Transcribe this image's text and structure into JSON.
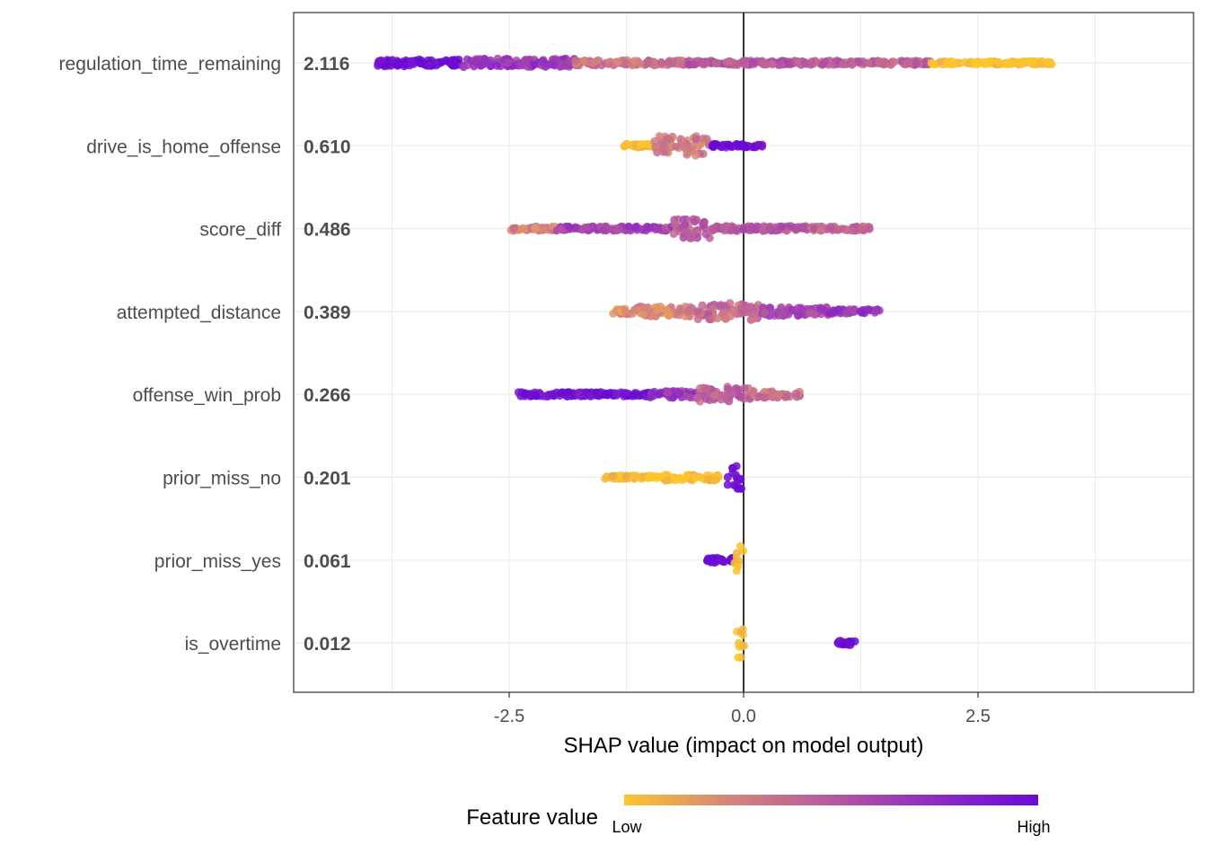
{
  "chart_data": {
    "type": "scatter",
    "subtype": "shap-beeswarm",
    "xlabel": "SHAP value (impact on model output)",
    "xlim": [
      -4.8,
      4.8
    ],
    "x_ticks": [
      -2.5,
      0.0,
      2.5
    ],
    "x_tick_labels": [
      "-2.5",
      "0.0",
      "2.5"
    ],
    "grid": true,
    "zero_line": 0,
    "legend": {
      "title": "Feature value",
      "low_label": "Low",
      "high_label": "High",
      "placement": "bottom",
      "gradient": [
        "#fcc52c",
        "#d6857a",
        "#b7589f",
        "#8e2bc2",
        "#6a0bd4"
      ]
    },
    "features": [
      {
        "name": "regulation_time_remaining",
        "mean_abs": "2.116",
        "segments": [
          {
            "from": -3.9,
            "to": -3.0,
            "color": 1.0,
            "spread": 0.08
          },
          {
            "from": -3.0,
            "to": -1.8,
            "color": 0.7,
            "spread": 0.1
          },
          {
            "from": -1.8,
            "to": -0.6,
            "color": 0.35,
            "spread": 0.06
          },
          {
            "from": -0.6,
            "to": 0.6,
            "color": 0.5,
            "spread": 0.05
          },
          {
            "from": 0.6,
            "to": 2.0,
            "color": 0.45,
            "spread": 0.05
          },
          {
            "from": 2.0,
            "to": 3.3,
            "color": 0.0,
            "spread": 0.04
          }
        ]
      },
      {
        "name": "drive_is_home_offense",
        "mean_abs": "0.610",
        "segments": [
          {
            "from": -1.3,
            "to": -0.95,
            "color": 0.05,
            "spread": 0.04
          },
          {
            "from": -0.95,
            "to": -0.35,
            "color": 0.3,
            "spread": 0.24
          },
          {
            "from": -0.35,
            "to": 0.2,
            "color": 0.95,
            "spread": 0.04
          }
        ]
      },
      {
        "name": "score_diff",
        "mean_abs": "0.486",
        "segments": [
          {
            "from": -2.5,
            "to": -2.0,
            "color": 0.3,
            "spread": 0.05
          },
          {
            "from": -2.0,
            "to": -0.75,
            "color": 0.62,
            "spread": 0.05
          },
          {
            "from": -0.75,
            "to": -0.35,
            "color": 0.48,
            "spread": 0.24
          },
          {
            "from": -0.35,
            "to": 0.7,
            "color": 0.5,
            "spread": 0.06
          },
          {
            "from": 0.7,
            "to": 1.35,
            "color": 0.42,
            "spread": 0.05
          }
        ]
      },
      {
        "name": "attempted_distance",
        "mean_abs": "0.389",
        "segments": [
          {
            "from": -1.4,
            "to": -1.2,
            "color": 0.2,
            "spread": 0.06
          },
          {
            "from": -1.2,
            "to": -0.5,
            "color": 0.25,
            "spread": 0.12
          },
          {
            "from": -0.5,
            "to": 0.2,
            "color": 0.4,
            "spread": 0.2
          },
          {
            "from": 0.2,
            "to": 0.9,
            "color": 0.6,
            "spread": 0.1
          },
          {
            "from": 0.9,
            "to": 1.45,
            "color": 0.7,
            "spread": 0.05
          }
        ]
      },
      {
        "name": "offense_win_prob",
        "mean_abs": "0.266",
        "segments": [
          {
            "from": -2.4,
            "to": -1.0,
            "color": 0.95,
            "spread": 0.05
          },
          {
            "from": -1.0,
            "to": -0.5,
            "color": 0.7,
            "spread": 0.08
          },
          {
            "from": -0.5,
            "to": 0.1,
            "color": 0.45,
            "spread": 0.18
          },
          {
            "from": 0.1,
            "to": 0.6,
            "color": 0.35,
            "spread": 0.08
          }
        ]
      },
      {
        "name": "prior_miss_no",
        "mean_abs": "0.201",
        "segments": [
          {
            "from": -1.5,
            "to": -0.85,
            "color": 0.0,
            "spread": 0.04
          },
          {
            "from": -0.85,
            "to": -0.25,
            "color": 0.0,
            "spread": 0.08
          },
          {
            "from": -0.2,
            "to": 0.0,
            "color": 1.0,
            "spread": 0.3
          }
        ]
      },
      {
        "name": "prior_miss_yes",
        "mean_abs": "0.061",
        "segments": [
          {
            "from": -0.42,
            "to": -0.12,
            "color": 1.0,
            "spread": 0.06
          },
          {
            "from": -0.1,
            "to": 0.0,
            "color": 0.0,
            "spread": 0.34
          }
        ]
      },
      {
        "name": "is_overtime",
        "mean_abs": "0.012",
        "segments": [
          {
            "from": -0.08,
            "to": 0.02,
            "color": 0.0,
            "spread": 0.38
          },
          {
            "from": 1.0,
            "to": 1.2,
            "color": 1.0,
            "spread": 0.05
          }
        ]
      }
    ]
  }
}
